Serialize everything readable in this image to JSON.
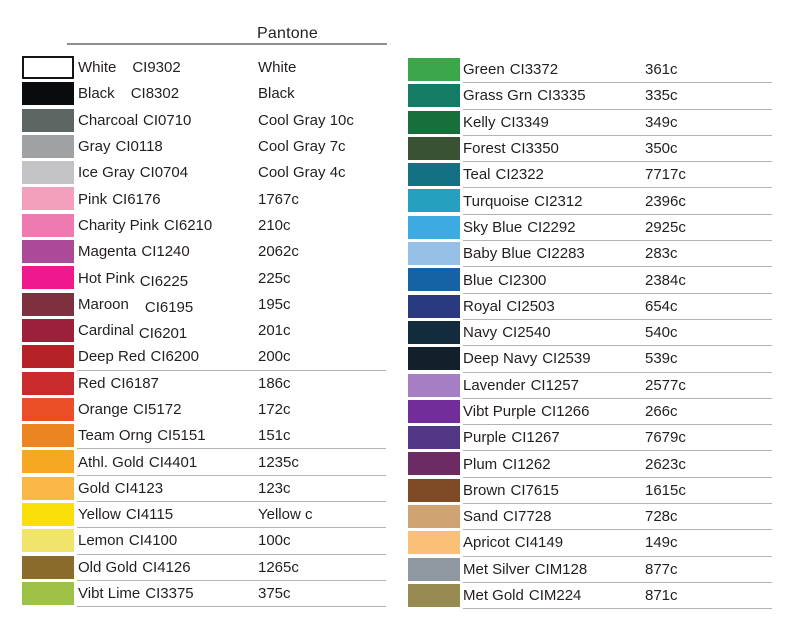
{
  "page": {
    "background": "#ffffff",
    "text_color": "#231f20",
    "row_line_color": "#b3b3b3",
    "header_line_color": "#8f8f8f"
  },
  "header": {
    "pantone_label": "Pantone"
  },
  "chart_data": {
    "type": "table",
    "title": "Pantone",
    "column_headers": [
      "swatch",
      "color name + ink code",
      "Pantone"
    ],
    "columns": {
      "left": {
        "rows": [
          {
            "name": "White",
            "code": "CI9302",
            "pantone": "White",
            "hex": "#ffffff",
            "border": true,
            "wide_gap": true
          },
          {
            "name": "Black",
            "code": "CI8302",
            "pantone": "Black",
            "hex": "#0a0b0d",
            "wide_gap": true
          },
          {
            "name": "Charcoal",
            "code": "CI0710",
            "pantone": "Cool Gray 10c",
            "hex": "#5e6663"
          },
          {
            "name": "Gray",
            "code": "CI0118",
            "pantone": "Cool Gray 7c",
            "hex": "#9fa1a2"
          },
          {
            "name": "Ice Gray",
            "code": "CI0704",
            "pantone": "Cool Gray 4c",
            "hex": "#c3c3c5"
          },
          {
            "name": "Pink",
            "code": "CI6176",
            "pantone": "1767c",
            "hex": "#f2a0bb"
          },
          {
            "name": "Charity Pink",
            "code": "CI6210",
            "pantone": "210c",
            "hex": "#ed7bb0"
          },
          {
            "name": "Magenta",
            "code": "CI1240",
            "pantone": "2062c",
            "hex": "#ab4a96"
          },
          {
            "name": "Hot Pink",
            "code": "CI6225",
            "pantone": "225c",
            "hex": "#ee1a8d",
            "code_shift": true
          },
          {
            "name": "Maroon",
            "code": "CI6195",
            "pantone": "195c",
            "hex": "#7c3040",
            "wide_gap": true,
            "code_shift": true
          },
          {
            "name": "Cardinal",
            "code": "CI6201",
            "pantone": "201c",
            "hex": "#9c203a",
            "code_shift": true
          },
          {
            "name": "Deep Red",
            "code": "CI6200",
            "pantone": "200c",
            "hex": "#b52228",
            "line": true
          },
          {
            "name": "Red",
            "code": "CI6187",
            "pantone": "186c",
            "hex": "#c92a2c"
          },
          {
            "name": "Orange",
            "code": "CI5172",
            "pantone": "172c",
            "hex": "#e94e26"
          },
          {
            "name": "Team Orng",
            "code": "CI5151",
            "pantone": "151c",
            "hex": "#ed8422",
            "line": true
          },
          {
            "name": "Athl. Gold",
            "code": "CI4401",
            "pantone": "1235c",
            "hex": "#f7a823",
            "line": true
          },
          {
            "name": "Gold",
            "code": "CI4123",
            "pantone": "123c",
            "hex": "#f9b845",
            "line": true
          },
          {
            "name": "Yellow",
            "code": "CI4115",
            "pantone": "Yellow c",
            "hex": "#fadf0b",
            "line": true
          },
          {
            "name": "Lemon",
            "code": "CI4100",
            "pantone": "100c",
            "hex": "#f1e46a",
            "line": true
          },
          {
            "name": "Old Gold",
            "code": "CI4126",
            "pantone": "1265c",
            "hex": "#8b6b2b",
            "line": true
          },
          {
            "name": "Vibt Lime",
            "code": "CI3375",
            "pantone": "375c",
            "hex": "#9dc247",
            "line": true
          }
        ]
      },
      "right": {
        "all_lines": true,
        "rows": [
          {
            "name": "Green",
            "code": "CI3372",
            "pantone": "361c",
            "hex": "#3ba64a"
          },
          {
            "name": "Grass Grn",
            "code": "CI3335",
            "pantone": "335c",
            "hex": "#147c64"
          },
          {
            "name": "Kelly",
            "code": "CI3349",
            "pantone": "349c",
            "hex": "#176f3c"
          },
          {
            "name": "Forest",
            "code": "CI3350",
            "pantone": "350c",
            "hex": "#385233"
          },
          {
            "name": "Teal",
            "code": "CI2322",
            "pantone": "7717c",
            "hex": "#127183"
          },
          {
            "name": "Turquoise",
            "code": "CI2312",
            "pantone": "2396c",
            "hex": "#25a0bf"
          },
          {
            "name": "Sky Blue",
            "code": "CI2292",
            "pantone": "2925c",
            "hex": "#3dabe2"
          },
          {
            "name": "Baby Blue",
            "code": "CI2283",
            "pantone": "283c",
            "hex": "#97c0e6"
          },
          {
            "name": "Blue",
            "code": "CI2300",
            "pantone": "2384c",
            "hex": "#1563a5"
          },
          {
            "name": "Royal",
            "code": "CI2503",
            "pantone": "654c",
            "hex": "#2a3a80"
          },
          {
            "name": "Navy",
            "code": "CI2540",
            "pantone": "540c",
            "hex": "#132c3d"
          },
          {
            "name": "Deep Navy",
            "code": "CI2539",
            "pantone": "539c",
            "hex": "#13202c"
          },
          {
            "name": "Lavender",
            "code": "CI1257",
            "pantone": "2577c",
            "hex": "#a67ec3"
          },
          {
            "name": "Vibt Purple",
            "code": "CI1266",
            "pantone": "266c",
            "hex": "#722d9a"
          },
          {
            "name": "Purple",
            "code": "CI1267",
            "pantone": "7679c",
            "hex": "#533787"
          },
          {
            "name": "Plum",
            "code": "CI1262",
            "pantone": "2623c",
            "hex": "#6d2b64"
          },
          {
            "name": "Brown",
            "code": "CI7615",
            "pantone": "1615c",
            "hex": "#7d4a25"
          },
          {
            "name": "Sand",
            "code": "CI7728",
            "pantone": "728c",
            "hex": "#d0a373"
          },
          {
            "name": "Apricot",
            "code": "CI4149",
            "pantone": "149c",
            "hex": "#fac077"
          },
          {
            "name": "Met Silver",
            "code": "CIM128",
            "pantone": "877c",
            "hex": "#8f97a0"
          },
          {
            "name": "Met Gold",
            "code": "CIM224",
            "pantone": "871c",
            "hex": "#988b52"
          }
        ]
      }
    }
  }
}
